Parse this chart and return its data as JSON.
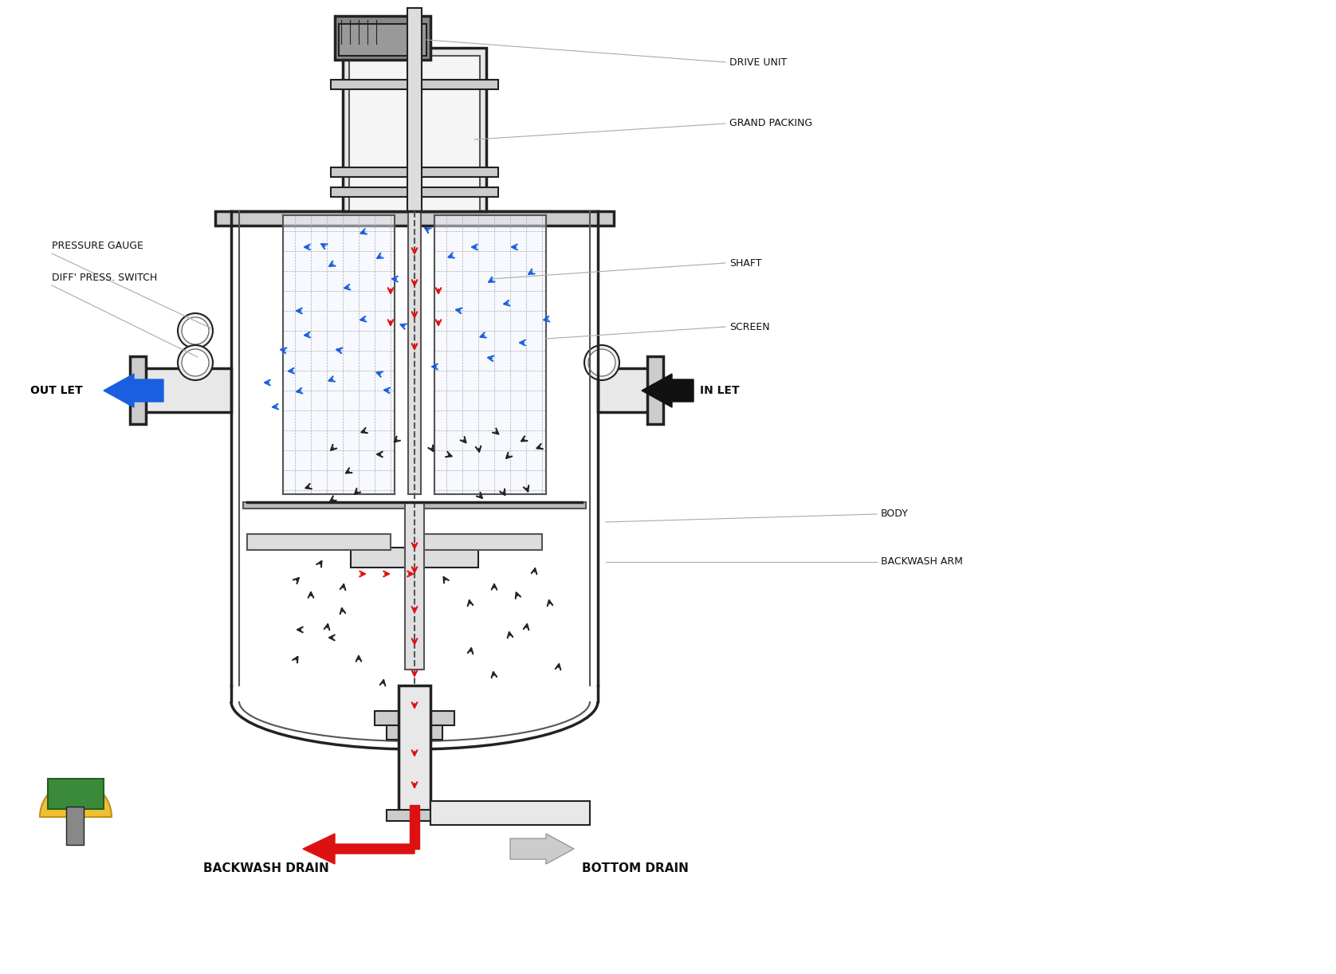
{
  "background_color": "#ffffff",
  "labels": {
    "drive_unit": "DRIVE UNIT",
    "grand_packing": "GRAND PACKING",
    "shaft": "SHAFT",
    "screen": "SCREEN",
    "in_let": "IN LET",
    "out_let": "OUT LET",
    "pressure_gauge": "PRESSURE GAUGE",
    "diff_press_switch": "DIFF' PRESS. SWITCH",
    "body": "BODY",
    "backwash_arm": "BACKWASH ARM",
    "backwash_drain": "BACKWASH DRAIN",
    "bottom_drain": "BOTTOM DRAIN"
  },
  "label_fontsize": 9,
  "arrow_colors": {
    "blue": "#1a5fe0",
    "red": "#dd1111",
    "black": "#222222"
  }
}
